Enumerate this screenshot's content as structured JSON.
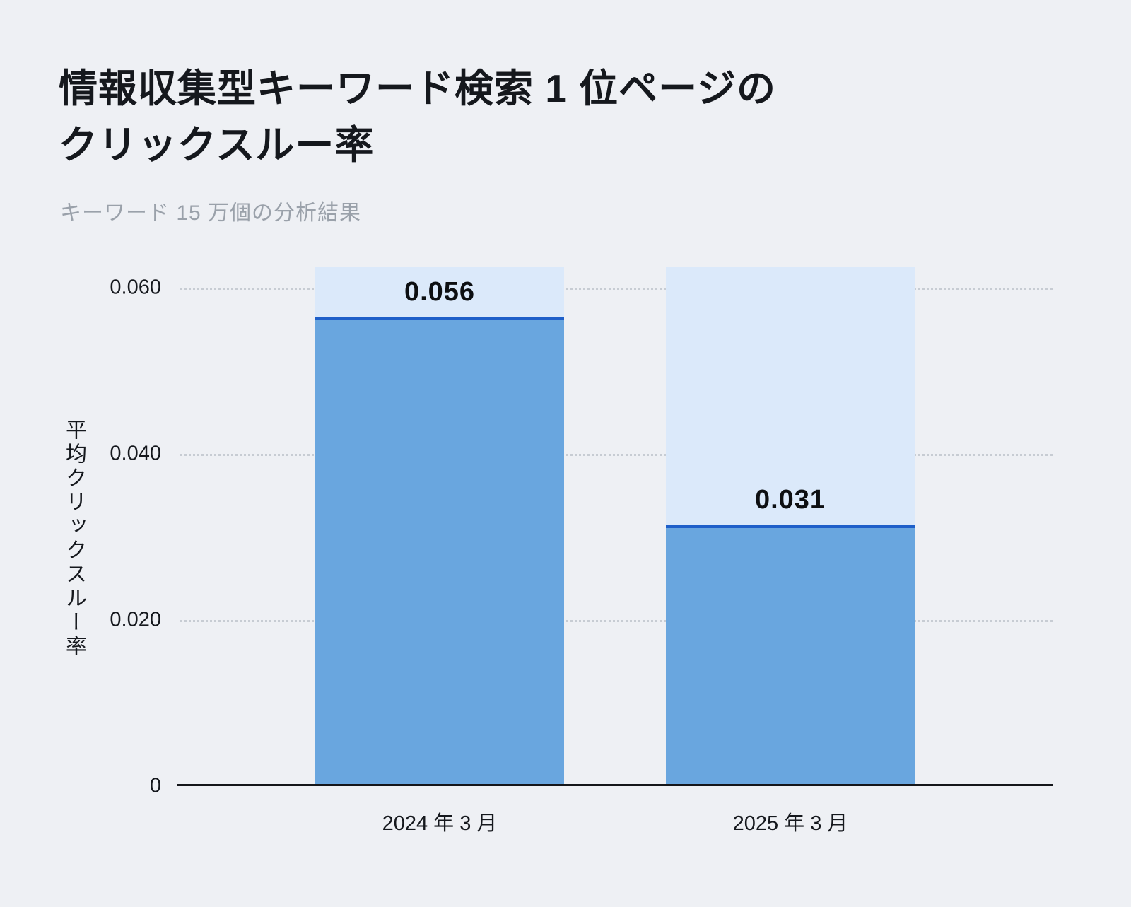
{
  "page": {
    "title_line1": "情報収集型キーワード検索 1 位ページの",
    "title_line2": "クリックスルー率",
    "subtitle": "キーワード 15 万個の分析結果"
  },
  "chart_data": {
    "type": "bar",
    "title": "情報収集型キーワード検索 1 位ページのクリックスルー率",
    "subtitle": "キーワード 15 万個の分析結果",
    "categories": [
      "2024 年 3 月",
      "2025 年 3 月"
    ],
    "values": [
      0.056,
      0.031
    ],
    "value_labels": [
      "0.056",
      "0.031"
    ],
    "xlabel": "",
    "ylabel": "平均クリックスルー率",
    "ylim": [
      0,
      0.0625
    ],
    "yticks": [
      0,
      0.02,
      0.04,
      0.06
    ],
    "ytick_labels": [
      "0",
      "0.020",
      "0.040",
      "0.060"
    ],
    "grid": "horizontal-dotted",
    "legend": "none",
    "colors": {
      "background": "#eef0f4",
      "bar_background": "#dbe9fa",
      "bar_fill": "#69a6df",
      "bar_top_line": "#1e5fc9",
      "grid": "#c7ccd3",
      "axis": "#14161a",
      "title": "#15181d",
      "subtitle": "#9aa1aa"
    }
  }
}
